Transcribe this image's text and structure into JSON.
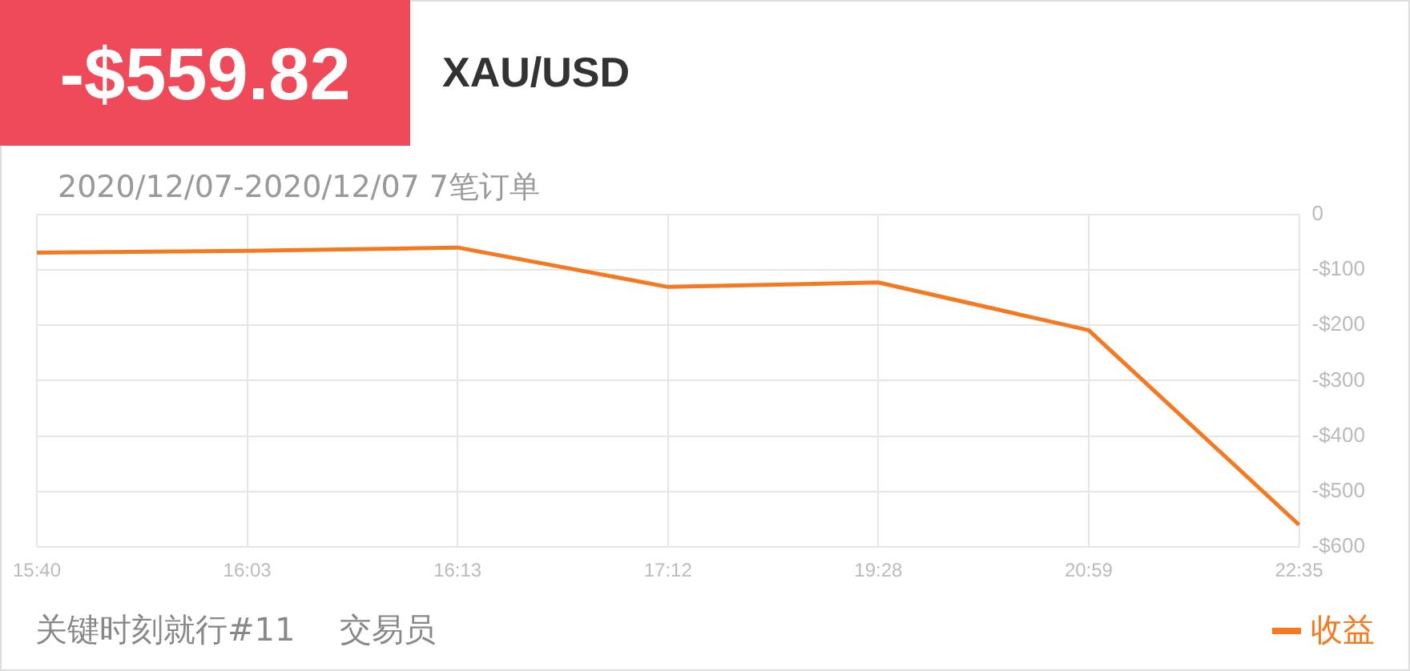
{
  "chart_data": {
    "type": "line",
    "title": "XAU/USD",
    "subtitle": "2020/12/07-2020/12/07 7笔订单",
    "annotations": [
      "-$559.82",
      "关键时刻就行#11",
      "交易员"
    ],
    "categories": [
      "15:40",
      "16:03",
      "16:13",
      "17:12",
      "19:28",
      "20:59",
      "22:35"
    ],
    "series": [
      {
        "name": "收益",
        "color": "#f47920",
        "values": [
          -69,
          -66,
          -60,
          -131,
          -123,
          -209,
          -560
        ]
      }
    ],
    "ylim": [
      -600,
      0
    ],
    "yticks": [
      {
        "value": 0,
        "label": "0"
      },
      {
        "value": -100,
        "label": "-$100"
      },
      {
        "value": -200,
        "label": "-$200"
      },
      {
        "value": -300,
        "label": "-$300"
      },
      {
        "value": -400,
        "label": "-$400"
      },
      {
        "value": -500,
        "label": "-$500"
      },
      {
        "value": -600,
        "label": "-$600"
      }
    ],
    "grid": true,
    "legend": "bottom right",
    "marker": "none",
    "line_style": "solid"
  }
}
